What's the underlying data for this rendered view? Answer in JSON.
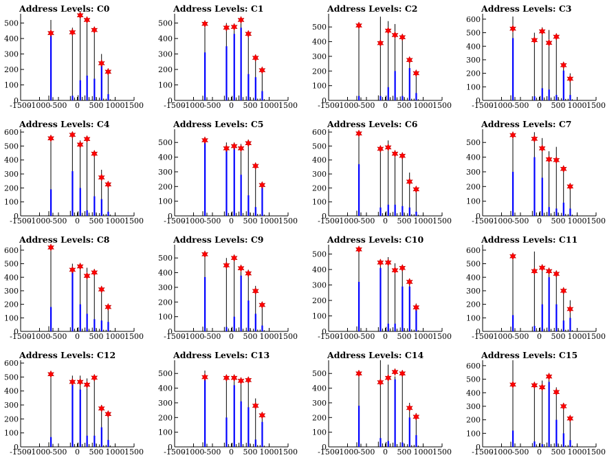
{
  "figure": {
    "title_prefix": "Address Levels: "
  },
  "chart_data": [
    {
      "type": "bar",
      "title": "Address Levels: C0",
      "xlim": [
        -1500,
        1500
      ],
      "ylim": [
        0,
        560
      ],
      "xticks": [
        -1500,
        -1000,
        -500,
        0,
        500,
        1000,
        1500
      ],
      "yticks": [
        0,
        100,
        200,
        300,
        400,
        500
      ],
      "x": [
        -700,
        -130,
        75,
        255,
        450,
        640,
        815
      ],
      "hist_max": [
        520,
        470,
        560,
        530,
        460,
        300,
        180
      ],
      "blue": [
        440,
        30,
        130,
        160,
        140,
        230,
        40
      ],
      "markers": [
        435,
        440,
        550,
        520,
        455,
        240,
        185
      ]
    },
    {
      "type": "bar",
      "title": "Address Levels: C1",
      "xlim": [
        -1500,
        1500
      ],
      "ylim": [
        0,
        560
      ],
      "xticks": [
        -1500,
        -1000,
        -500,
        0,
        500,
        1000,
        1500
      ],
      "yticks": [
        0,
        100,
        200,
        300,
        400,
        500
      ],
      "x": [
        -700,
        -130,
        75,
        255,
        450,
        640,
        815
      ],
      "hist_max": [
        500,
        500,
        480,
        530,
        430,
        290,
        200
      ],
      "blue": [
        310,
        350,
        430,
        470,
        170,
        150,
        60
      ],
      "markers": [
        495,
        470,
        475,
        520,
        430,
        275,
        195
      ]
    },
    {
      "type": "bar",
      "title": "Address Levels: C2",
      "xlim": [
        -1500,
        1500
      ],
      "ylim": [
        0,
        590
      ],
      "xticks": [
        -1500,
        -1000,
        -500,
        0,
        500,
        1000,
        1500
      ],
      "yticks": [
        0,
        100,
        200,
        300,
        400,
        500
      ],
      "x": [
        -700,
        -130,
        75,
        255,
        450,
        640,
        815
      ],
      "hist_max": [
        510,
        570,
        540,
        520,
        440,
        290,
        200
      ],
      "blue": [
        30,
        30,
        90,
        200,
        30,
        220,
        50
      ],
      "markers": [
        510,
        390,
        475,
        445,
        430,
        275,
        185
      ]
    },
    {
      "type": "bar",
      "title": "Address Levels: C3",
      "xlim": [
        -1500,
        1500
      ],
      "ylim": [
        0,
        640
      ],
      "xticks": [
        -1500,
        -1000,
        -500,
        0,
        500,
        1000,
        1500
      ],
      "yticks": [
        0,
        100,
        200,
        300,
        400,
        500,
        600
      ],
      "x": [
        -700,
        -130,
        75,
        255,
        450,
        640,
        815
      ],
      "hist_max": [
        620,
        500,
        540,
        520,
        490,
        280,
        200
      ],
      "blue": [
        460,
        30,
        90,
        80,
        40,
        220,
        40
      ],
      "markers": [
        530,
        445,
        510,
        425,
        470,
        260,
        160
      ]
    },
    {
      "type": "bar",
      "title": "Address Levels: C4",
      "xlim": [
        -1500,
        1500
      ],
      "ylim": [
        0,
        620
      ],
      "xticks": [
        -1500,
        -1000,
        -500,
        0,
        500,
        1000,
        1500
      ],
      "yticks": [
        0,
        100,
        200,
        300,
        400,
        500,
        600
      ],
      "x": [
        -700,
        -130,
        75,
        255,
        450,
        640,
        815
      ],
      "hist_max": [
        560,
        600,
        540,
        560,
        440,
        330,
        230
      ],
      "blue": [
        190,
        320,
        200,
        40,
        140,
        120,
        30
      ],
      "markers": [
        555,
        580,
        510,
        550,
        445,
        275,
        225
      ]
    },
    {
      "type": "bar",
      "title": "Address Levels: C5",
      "xlim": [
        -1500,
        1500
      ],
      "ylim": [
        0,
        590
      ],
      "xticks": [
        -1500,
        -1000,
        -500,
        0,
        500,
        1000,
        1500
      ],
      "yticks": [
        0,
        100,
        200,
        300,
        400,
        500
      ],
      "x": [
        -700,
        -130,
        75,
        255,
        450,
        640,
        815
      ],
      "hist_max": [
        530,
        500,
        500,
        490,
        520,
        350,
        220
      ],
      "blue": [
        500,
        450,
        460,
        280,
        140,
        60,
        200
      ],
      "markers": [
        515,
        460,
        475,
        460,
        495,
        340,
        210
      ]
    },
    {
      "type": "bar",
      "title": "Address Levels: C6",
      "xlim": [
        -1500,
        1500
      ],
      "ylim": [
        0,
        620
      ],
      "xticks": [
        -1500,
        -1000,
        -500,
        0,
        500,
        1000,
        1500
      ],
      "yticks": [
        0,
        100,
        200,
        300,
        400,
        500,
        600
      ],
      "x": [
        -700,
        -130,
        75,
        255,
        450,
        640,
        815
      ],
      "hist_max": [
        610,
        480,
        540,
        470,
        430,
        310,
        200
      ],
      "blue": [
        370,
        60,
        80,
        80,
        70,
        60,
        30
      ],
      "markers": [
        590,
        480,
        490,
        445,
        430,
        245,
        190
      ]
    },
    {
      "type": "bar",
      "title": "Address Levels: C7",
      "xlim": [
        -1500,
        1500
      ],
      "ylim": [
        0,
        590
      ],
      "xticks": [
        -1500,
        -1000,
        -500,
        0,
        500,
        1000,
        1500
      ],
      "yticks": [
        0,
        100,
        200,
        300,
        400,
        500
      ],
      "x": [
        -700,
        -130,
        75,
        255,
        450,
        640,
        815
      ],
      "hist_max": [
        560,
        570,
        530,
        440,
        470,
        340,
        210
      ],
      "blue": [
        300,
        400,
        260,
        60,
        50,
        90,
        50
      ],
      "markers": [
        550,
        525,
        460,
        385,
        380,
        320,
        200
      ]
    },
    {
      "type": "bar",
      "title": "Address Levels: C8",
      "xlim": [
        -1500,
        1500
      ],
      "ylim": [
        0,
        640
      ],
      "xticks": [
        -1500,
        -1000,
        -500,
        0,
        500,
        1000,
        1500
      ],
      "yticks": [
        0,
        100,
        200,
        300,
        400,
        500,
        600
      ],
      "x": [
        -700,
        -130,
        75,
        255,
        450,
        640,
        815
      ],
      "hist_max": [
        630,
        500,
        500,
        470,
        460,
        320,
        200
      ],
      "blue": [
        180,
        440,
        200,
        130,
        90,
        80,
        70
      ],
      "markers": [
        620,
        455,
        480,
        410,
        435,
        310,
        180
      ]
    },
    {
      "type": "bar",
      "title": "Address Levels: C9",
      "xlim": [
        -1500,
        1500
      ],
      "ylim": [
        0,
        590
      ],
      "xticks": [
        -1500,
        -1000,
        -500,
        0,
        500,
        1000,
        1500
      ],
      "yticks": [
        0,
        100,
        200,
        300,
        400,
        500
      ],
      "x": [
        -700,
        -130,
        75,
        255,
        450,
        640,
        815
      ],
      "hist_max": [
        540,
        500,
        510,
        450,
        420,
        310,
        200
      ],
      "blue": [
        370,
        30,
        100,
        380,
        210,
        120,
        40
      ],
      "markers": [
        525,
        450,
        500,
        430,
        395,
        275,
        180
      ]
    },
    {
      "type": "bar",
      "title": "Address Levels: C10",
      "xlim": [
        -1500,
        1500
      ],
      "ylim": [
        0,
        560
      ],
      "xticks": [
        -1500,
        -1000,
        -500,
        0,
        500,
        1000,
        1500
      ],
      "yticks": [
        0,
        100,
        200,
        300,
        400,
        500
      ],
      "x": [
        -700,
        -130,
        75,
        255,
        450,
        640,
        815
      ],
      "hist_max": [
        540,
        460,
        480,
        440,
        420,
        330,
        180
      ],
      "blue": [
        320,
        410,
        50,
        50,
        290,
        290,
        150
      ],
      "markers": [
        530,
        445,
        445,
        395,
        410,
        320,
        155
      ]
    },
    {
      "type": "bar",
      "title": "Address Levels: C11",
      "xlim": [
        -1500,
        1500
      ],
      "ylim": [
        0,
        640
      ],
      "xticks": [
        -1500,
        -1000,
        -500,
        0,
        500,
        1000,
        1500
      ],
      "yticks": [
        0,
        100,
        200,
        300,
        400,
        500,
        600
      ],
      "x": [
        -700,
        -130,
        75,
        255,
        450,
        640,
        815
      ],
      "hist_max": [
        580,
        590,
        480,
        460,
        430,
        300,
        230
      ],
      "blue": [
        120,
        40,
        200,
        400,
        200,
        80,
        100
      ],
      "markers": [
        555,
        445,
        470,
        445,
        425,
        300,
        165
      ]
    },
    {
      "type": "bar",
      "title": "Address Levels: C12",
      "xlim": [
        -1500,
        1500
      ],
      "ylim": [
        0,
        620
      ],
      "xticks": [
        -1500,
        -1000,
        -500,
        0,
        500,
        1000,
        1500
      ],
      "yticks": [
        0,
        100,
        200,
        300,
        400,
        500,
        600
      ],
      "x": [
        -700,
        -130,
        75,
        255,
        450,
        640,
        815
      ],
      "hist_max": [
        540,
        510,
        510,
        490,
        500,
        300,
        240
      ],
      "blue": [
        70,
        480,
        410,
        80,
        80,
        140,
        50
      ],
      "markers": [
        520,
        465,
        465,
        445,
        495,
        275,
        235
      ]
    },
    {
      "type": "bar",
      "title": "Address Levels: C13",
      "xlim": [
        -1500,
        1500
      ],
      "ylim": [
        0,
        590
      ],
      "xticks": [
        -1500,
        -1000,
        -500,
        0,
        500,
        1000,
        1500
      ],
      "yticks": [
        0,
        100,
        200,
        300,
        400,
        500
      ],
      "x": [
        -700,
        -130,
        75,
        255,
        450,
        640,
        815
      ],
      "hist_max": [
        520,
        480,
        470,
        470,
        460,
        330,
        210
      ],
      "blue": [
        460,
        200,
        420,
        310,
        270,
        50,
        170
      ],
      "markers": [
        475,
        470,
        470,
        450,
        455,
        280,
        215
      ]
    },
    {
      "type": "bar",
      "title": "Address Levels: C14",
      "xlim": [
        -1500,
        1500
      ],
      "ylim": [
        0,
        590
      ],
      "xticks": [
        -1500,
        -1000,
        -500,
        0,
        500,
        1000,
        1500
      ],
      "yticks": [
        0,
        100,
        200,
        300,
        400,
        500
      ],
      "x": [
        -700,
        -130,
        75,
        255,
        450,
        640,
        815
      ],
      "hist_max": [
        520,
        590,
        560,
        480,
        520,
        300,
        230
      ],
      "blue": [
        280,
        60,
        40,
        460,
        30,
        200,
        80
      ],
      "markers": [
        500,
        440,
        470,
        510,
        500,
        265,
        205
      ]
    },
    {
      "type": "bar",
      "title": "Address Levels: C15",
      "xlim": [
        -1500,
        1500
      ],
      "ylim": [
        0,
        640
      ],
      "xticks": [
        -1500,
        -1000,
        -500,
        0,
        500,
        1000,
        1500
      ],
      "yticks": [
        0,
        100,
        200,
        300,
        400,
        500,
        600
      ],
      "x": [
        -700,
        -130,
        75,
        255,
        450,
        640,
        815
      ],
      "hist_max": [
        640,
        470,
        490,
        530,
        440,
        310,
        230
      ],
      "blue": [
        120,
        40,
        20,
        480,
        200,
        100,
        50
      ],
      "markers": [
        460,
        455,
        440,
        520,
        405,
        300,
        210
      ]
    }
  ],
  "colors": {
    "axis": "#000000",
    "blue": "#0000ff",
    "black": "#000000",
    "marker": "#ff0000"
  },
  "icons": {
    "marker": "red-star-marker"
  }
}
